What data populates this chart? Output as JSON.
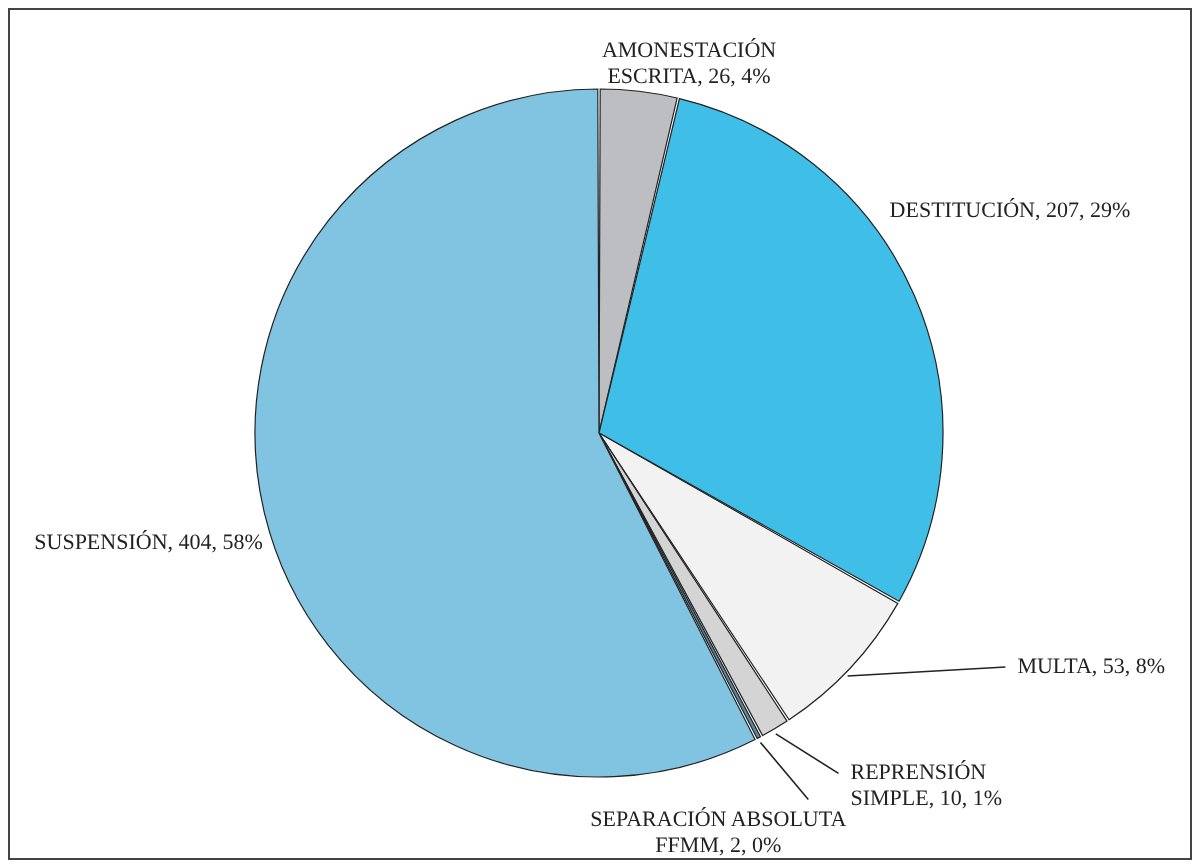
{
  "chart_data": {
    "type": "pie",
    "categories": [
      "AMONESTACIÓN ESCRITA",
      "DESTITUCIÓN",
      "MULTA",
      "REPRENSIÓN SIMPLE",
      "SEPARACIÓN ABSOLUTA FFMM",
      "SUSPENSIÓN"
    ],
    "values": [
      26,
      207,
      53,
      10,
      2,
      404
    ],
    "colors": [
      "#bdbec2",
      "#3fbfe8",
      "#f2f2f2",
      "#d4d4d4",
      "#5a8aa0",
      "#80c4e2"
    ],
    "value_labels": [
      "26, 4%",
      "207, 29%",
      "53, 8%",
      "10, 1%",
      "2, 0%",
      "404, 58%"
    ]
  }
}
